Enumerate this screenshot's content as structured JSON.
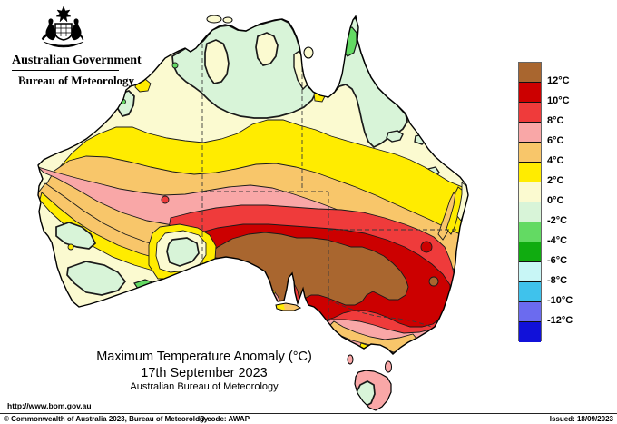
{
  "header": {
    "gov": "Australian Government",
    "bureau": "Bureau of Meteorology"
  },
  "titles": {
    "main": "Maximum Temperature Anomaly (°C)",
    "date": "17th September 2023",
    "org": "Australian Bureau of Meteorology"
  },
  "footer": {
    "url": "http://www.bom.gov.au",
    "copyright": "© Commonwealth of Australia 2023, Bureau of Meteorology",
    "id_code": "ID code: AWAP",
    "issued": "Issued: 18/09/2023"
  },
  "palette": {
    "brown": "#A9662F",
    "dark_red": "#CC0000",
    "red": "#EF3B3B",
    "pink": "#F9A7A7",
    "orange": "#F8C66A",
    "yellow": "#FFEC00",
    "cream": "#FBFAD0",
    "pale_green": "#D8F4D8",
    "mid_green": "#63DA63",
    "green": "#10AC10",
    "pale_cyan": "#C8F6F6",
    "cyan": "#3FC2EC",
    "blue_violet": "#6B6BEF",
    "blue": "#1111D9",
    "ocean": "#FFFFFF",
    "coast": "#000000",
    "contour": "#1a1a1a",
    "state_border": "#3a3a3a"
  },
  "legend": {
    "colors": [
      "#A9662F",
      "#CC0000",
      "#EF3B3B",
      "#F9A7A7",
      "#F8C66A",
      "#FFEC00",
      "#FBFAD0",
      "#D8F4D8",
      "#63DA63",
      "#10AC10",
      "#C8F6F6",
      "#3FC2EC",
      "#6B6BEF",
      "#1111D9"
    ],
    "labels": [
      "12°C",
      "10°C",
      "8°C",
      "6°C",
      "4°C",
      "2°C",
      "0°C",
      "-2°C",
      "-4°C",
      "-6°C",
      "-8°C",
      "-10°C",
      "-12°C"
    ]
  },
  "chart_data": {
    "type": "heatmap",
    "subtype": "choropleth-contour-map",
    "title": "Maximum Temperature Anomaly (°C)",
    "date": "17th September 2023",
    "region": "Australia",
    "legend_position": "right",
    "scale_degC": [
      12,
      10,
      8,
      6,
      4,
      2,
      0,
      -2,
      -4,
      -6,
      -8,
      -10,
      -12
    ],
    "scale_colors_top_to_bottom": [
      "#A9662F",
      "#CC0000",
      "#EF3B3B",
      "#F9A7A7",
      "#F8C66A",
      "#FFEC00",
      "#FBFAD0",
      "#D8F4D8",
      "#63DA63",
      "#10AC10",
      "#C8F6F6",
      "#3FC2EC",
      "#6B6BEF",
      "#1111D9"
    ],
    "summary": "Anomalies above +12°C (brown) over South Australia and western New South Wales, +8 to +12°C surrounding band, +2 to +8°C across central and western Australia, 0 to +2°C in the far north and southwest, slightly below 0°C over the Top End, Cape York and southwest WA coast, Tasmania near 0°C."
  }
}
